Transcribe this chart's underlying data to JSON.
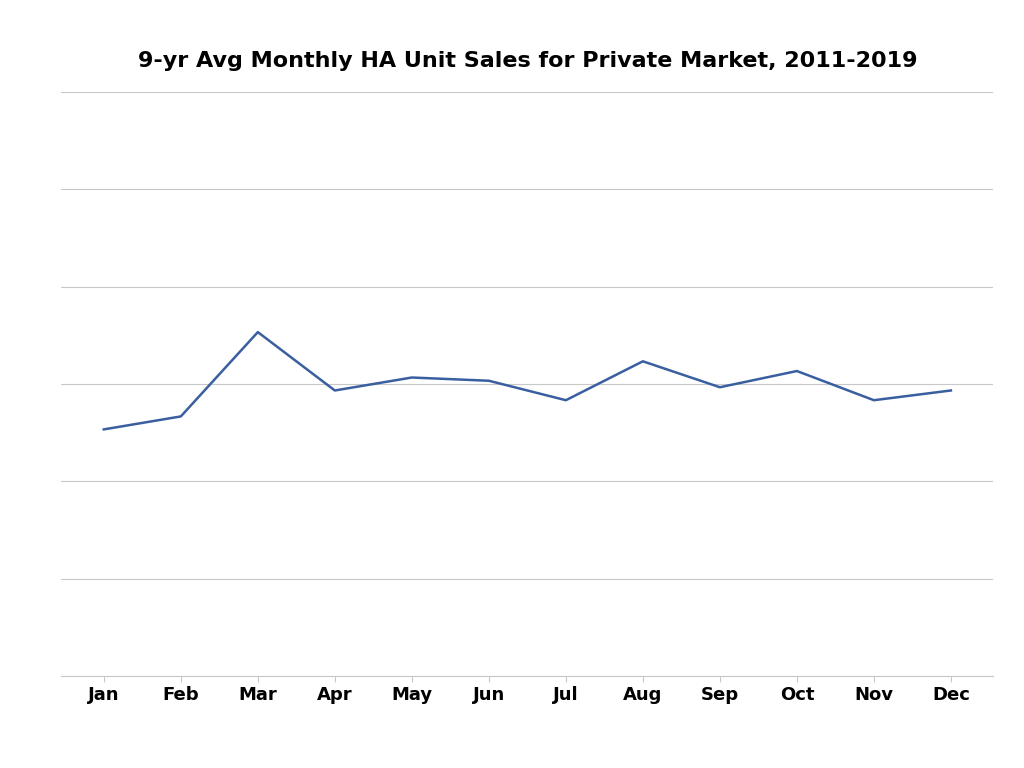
{
  "title": "9-yr Avg Monthly HA Unit Sales for Private Market, 2011-2019",
  "months": [
    "Jan",
    "Feb",
    "Mar",
    "Apr",
    "May",
    "Jun",
    "Jul",
    "Aug",
    "Sep",
    "Oct",
    "Nov",
    "Dec"
  ],
  "values": [
    76,
    80,
    106,
    88,
    92,
    91,
    85,
    97,
    89,
    94,
    85,
    88
  ],
  "line_color": "#3A5FA0",
  "line_width": 1.8,
  "background_color": "#FFFFFF",
  "grid_color": "#C8C8C8",
  "title_fontsize": 16,
  "tick_fontsize": 13,
  "ylim": [
    0,
    180
  ],
  "ytick_values": [
    0,
    30,
    60,
    90,
    120,
    150,
    180
  ],
  "fig_width": 10.24,
  "fig_height": 7.68
}
